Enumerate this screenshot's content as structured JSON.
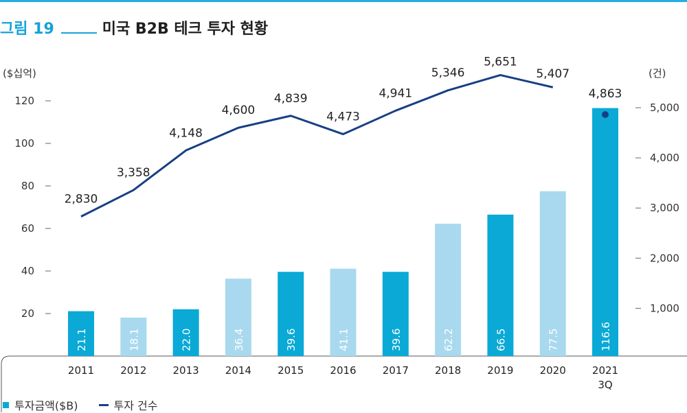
{
  "figure": {
    "number": "그림 19",
    "title": "미국 B2B 테크 투자 현황"
  },
  "colors": {
    "accent": "#14a3d9",
    "bar_dark": "#0aa9d6",
    "bar_light": "#a9d9ee",
    "line": "#173f84"
  },
  "chart_data": {
    "type": "bar",
    "categories": [
      "2011",
      "2012",
      "2013",
      "2014",
      "2015",
      "2016",
      "2017",
      "2018",
      "2019",
      "2020",
      "2021\n3Q"
    ],
    "series": [
      {
        "name": "투자금액($B)",
        "type": "bar",
        "axis": "left",
        "values": [
          21.1,
          18.1,
          22.0,
          36.4,
          39.6,
          41.1,
          39.6,
          62.2,
          66.5,
          77.5,
          116.6
        ],
        "value_labels": [
          "21.1",
          "18.1",
          "22.0",
          "36.4",
          "39.6",
          "41.1",
          "39.6",
          "62.2",
          "66.5",
          "77.5",
          "116.6"
        ],
        "shade": [
          "dark",
          "light",
          "dark",
          "light",
          "dark",
          "light",
          "dark",
          "light",
          "dark",
          "light",
          "dark"
        ]
      },
      {
        "name": "투자 건수",
        "type": "line",
        "axis": "right",
        "values": [
          2830,
          3358,
          4148,
          4600,
          4839,
          4473,
          4941,
          5346,
          5651,
          5407,
          4863
        ],
        "value_labels": [
          "2,830",
          "3,358",
          "4,148",
          "4,600",
          "4,839",
          "4,473",
          "4,941",
          "5,346",
          "5,651",
          "5,407",
          "4,863"
        ],
        "line_through": 10,
        "last_as_point": true
      }
    ],
    "y_left": {
      "unit": "($십억)",
      "range": [
        0,
        120
      ],
      "ticks": [
        20,
        40,
        60,
        80,
        100,
        120
      ],
      "tick_labels": [
        "20",
        "40",
        "60",
        "80",
        "100",
        "120"
      ]
    },
    "y_right": {
      "unit": "(건)",
      "range": [
        0,
        5000
      ],
      "ticks": [
        1000,
        2000,
        3000,
        4000,
        5000
      ],
      "tick_labels": [
        "1,000",
        "2,000",
        "3,000",
        "4,000",
        "5,000"
      ]
    },
    "grid": false,
    "legend_position": "bottom-left"
  }
}
